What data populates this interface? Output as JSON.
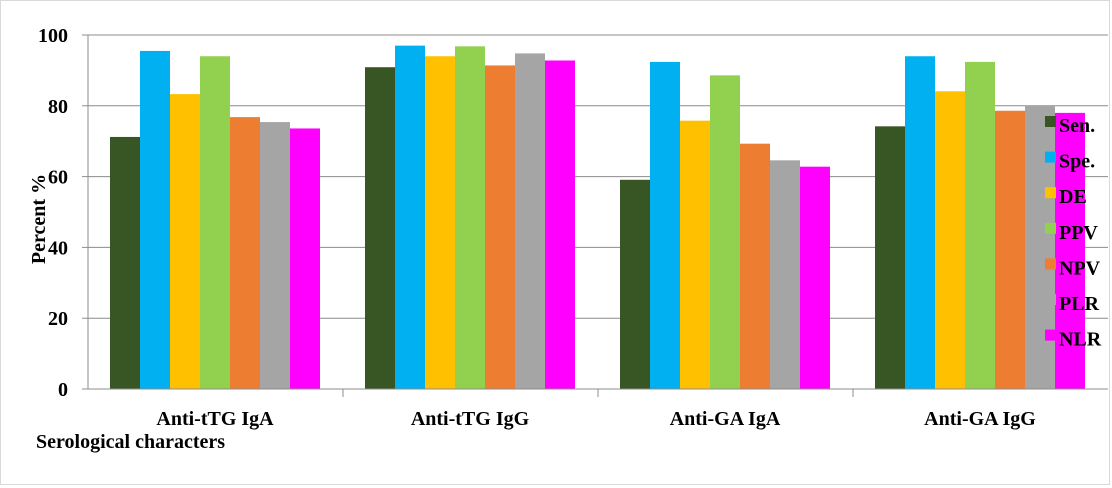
{
  "chart_data": {
    "type": "bar",
    "title": "",
    "xlabel": "Serological characters",
    "ylabel": "Percent %",
    "ylim": [
      0,
      100
    ],
    "yticks": [
      0,
      20,
      40,
      60,
      80,
      100
    ],
    "grid": true,
    "legend_position": "right",
    "categories": [
      "Anti-tTG IgA",
      "Anti-tTG IgG",
      "Anti-GA IgA",
      "Anti-GA IgG"
    ],
    "series": [
      {
        "name": "Sen.",
        "color": "#375623",
        "values": [
          71.2,
          90.9,
          59.1,
          74.2
        ]
      },
      {
        "name": "Spe.",
        "color": "#00b0f0",
        "values": [
          95.5,
          97.0,
          92.4,
          94.0
        ]
      },
      {
        "name": "DE",
        "color": "#ffc000",
        "values": [
          83.3,
          94.0,
          75.8,
          84.1
        ]
      },
      {
        "name": "PPV",
        "color": "#92d050",
        "values": [
          94.0,
          96.8,
          88.6,
          92.4
        ]
      },
      {
        "name": "NPV",
        "color": "#ed7d31",
        "values": [
          76.8,
          91.4,
          69.3,
          78.6
        ]
      },
      {
        "name": "PLR",
        "color": "#a5a5a5",
        "values": [
          75.4,
          94.8,
          64.6,
          80.0
        ]
      },
      {
        "name": "NLR",
        "color": "#ff00ff",
        "values": [
          73.6,
          92.8,
          62.8,
          78.0
        ]
      }
    ]
  }
}
